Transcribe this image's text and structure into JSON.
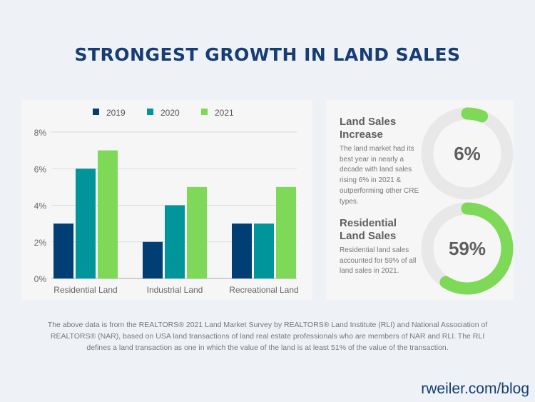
{
  "title": "STRONGEST GROWTH IN LAND SALES",
  "chart_data": {
    "type": "bar",
    "categories": [
      "Residential Land",
      "Industrial Land",
      "Recreational Land"
    ],
    "series": [
      {
        "name": "2019",
        "values": [
          3,
          2,
          3
        ],
        "color": "#003e73"
      },
      {
        "name": "2020",
        "values": [
          6,
          4,
          3
        ],
        "color": "#00959a"
      },
      {
        "name": "2021",
        "values": [
          7,
          5,
          5
        ],
        "color": "#7dd957"
      }
    ],
    "ylim": [
      0,
      8
    ],
    "yticks": [
      "0%",
      "2%",
      "4%",
      "6%",
      "8%"
    ],
    "grid": true,
    "legend": "top"
  },
  "stats": [
    {
      "heading": "Land Sales Increase",
      "body": "The land market had its best year in nearly a decade with land sales rising 6% in 2021 & outperforming other CRE types.",
      "value_label": "6%",
      "percent": 6
    },
    {
      "heading": "Residential Land Sales",
      "body": "Residential land sales accounted for 59% of all land sales in 2021.",
      "value_label": "59%",
      "percent": 59
    }
  ],
  "donut_color": "#7dd957",
  "footnote": "The above data is from the REALTORS® 2021 Land Market Survey by REALTORS® Land Institute (RLI) and National Association of REALTORS® (NAR), based on USA land transactions of land real estate professionals who are members of NAR and RLI. The RLI defines a land transaction as one in which the value of the land is at least 51% of the value of the transaction.",
  "brand": "rweiler.com/blog"
}
